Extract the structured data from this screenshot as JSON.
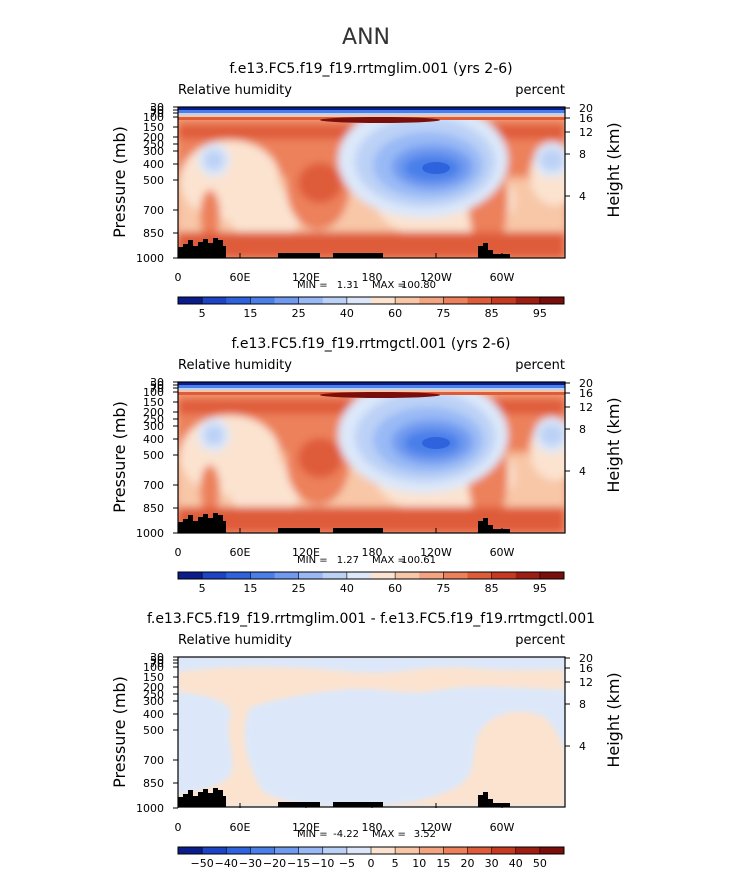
{
  "figure": {
    "title": "ANN"
  },
  "chart_data": [
    {
      "type": "heatmap",
      "title": "f.e13.FC5.f19_f19.rrtmglim.001 (yrs 2-6)",
      "left_label": "Relative humidity",
      "right_label": "percent",
      "ylabel": "Pressure (mb)",
      "y2label": "Height (km)",
      "xticks": [
        "0",
        "60E",
        "120E",
        "180",
        "120W",
        "60W"
      ],
      "yticks": [
        "30",
        "50",
        "70",
        "100",
        "150",
        "200",
        "250",
        "300",
        "400",
        "500",
        "700",
        "850",
        "1000"
      ],
      "y2ticks": [
        "20",
        "16",
        "12",
        "8",
        "4"
      ],
      "stats": {
        "min_label": "MIN =",
        "min": "1.31",
        "max_label": "MAX =",
        "max": "100.80"
      },
      "levels": [
        "5",
        "15",
        "25",
        "40",
        "60",
        "75",
        "85",
        "95"
      ],
      "colors": [
        "#0b1d8c",
        "#1d44c4",
        "#2f63dd",
        "#4a7fe9",
        "#6f9af0",
        "#98b9f5",
        "#bcd1f6",
        "#dce8fa",
        "#fbe3d0",
        "#f8c7a8",
        "#f3a581",
        "#ec815c",
        "#df5c3a",
        "#c63a22",
        "#9f1e14",
        "#7a0e0b"
      ]
    },
    {
      "type": "heatmap",
      "title": "f.e13.FC5.f19_f19.rrtmgctl.001 (yrs 2-6)",
      "left_label": "Relative humidity",
      "right_label": "percent",
      "ylabel": "Pressure (mb)",
      "y2label": "Height (km)",
      "xticks": [
        "0",
        "60E",
        "120E",
        "180",
        "120W",
        "60W"
      ],
      "yticks": [
        "30",
        "50",
        "70",
        "100",
        "150",
        "200",
        "250",
        "300",
        "400",
        "500",
        "700",
        "850",
        "1000"
      ],
      "y2ticks": [
        "20",
        "16",
        "12",
        "8",
        "4"
      ],
      "stats": {
        "min_label": "MIN =",
        "min": "1.27",
        "max_label": "MAX =",
        "max": "100.61"
      },
      "levels": [
        "5",
        "15",
        "25",
        "40",
        "60",
        "75",
        "85",
        "95"
      ],
      "colors": [
        "#0b1d8c",
        "#1d44c4",
        "#2f63dd",
        "#4a7fe9",
        "#6f9af0",
        "#98b9f5",
        "#bcd1f6",
        "#dce8fa",
        "#fbe3d0",
        "#f8c7a8",
        "#f3a581",
        "#ec815c",
        "#df5c3a",
        "#c63a22",
        "#9f1e14",
        "#7a0e0b"
      ]
    },
    {
      "type": "heatmap",
      "title": "f.e13.FC5.f19_f19.rrtmglim.001 - f.e13.FC5.f19_f19.rrtmgctl.001",
      "left_label": "Relative humidity",
      "right_label": "percent",
      "ylabel": "Pressure (mb)",
      "y2label": "Height (km)",
      "xticks": [
        "0",
        "60E",
        "120E",
        "180",
        "120W",
        "60W"
      ],
      "yticks": [
        "30",
        "50",
        "70",
        "100",
        "150",
        "200",
        "250",
        "300",
        "400",
        "500",
        "700",
        "850",
        "1000"
      ],
      "y2ticks": [
        "20",
        "16",
        "12",
        "8",
        "4"
      ],
      "stats": {
        "min_label": "MIN =",
        "min": "-4.22",
        "max_label": "MAX =",
        "max": "3.52"
      },
      "levels": [
        "−50",
        "−40",
        "−30",
        "−20",
        "−15",
        "−10",
        "−5",
        "0",
        "5",
        "10",
        "15",
        "20",
        "30",
        "40",
        "50"
      ],
      "colors": [
        "#0b1d8c",
        "#1d44c4",
        "#2f63dd",
        "#4a7fe9",
        "#6f9af0",
        "#98b9f5",
        "#bcd1f6",
        "#dce8fa",
        "#fbe3d0",
        "#f8c7a8",
        "#f3a581",
        "#ec815c",
        "#df5c3a",
        "#c63a22",
        "#9f1e14",
        "#7a0e0b"
      ]
    }
  ]
}
